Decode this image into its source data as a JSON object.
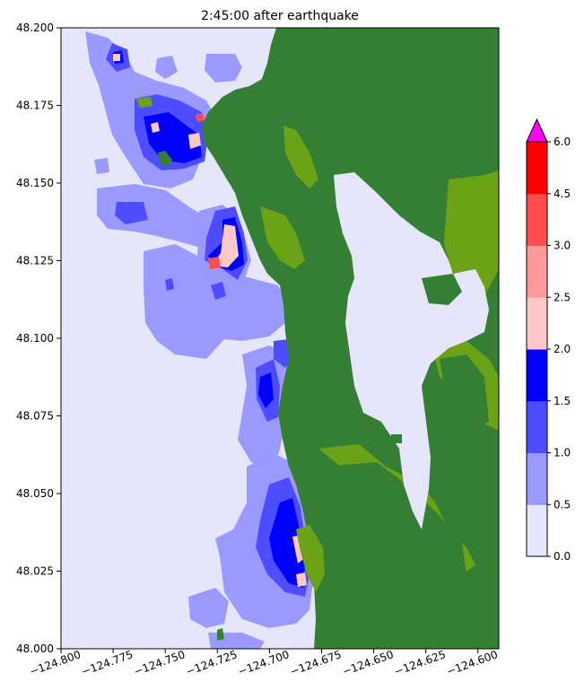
{
  "chart_data": {
    "type": "heatmap",
    "title": "2:45:00 after earthquake",
    "xlabel": "",
    "ylabel": "",
    "xlim": [
      -124.8,
      -124.59
    ],
    "ylim": [
      48.0,
      48.2
    ],
    "xticks": [
      {
        "value": -124.8,
        "label": "−124.800"
      },
      {
        "value": -124.775,
        "label": "−124.775"
      },
      {
        "value": -124.75,
        "label": "−124.750"
      },
      {
        "value": -124.725,
        "label": "−124.725"
      },
      {
        "value": -124.7,
        "label": "−124.700"
      },
      {
        "value": -124.675,
        "label": "−124.675"
      },
      {
        "value": -124.65,
        "label": "−124.650"
      },
      {
        "value": -124.625,
        "label": "−124.625"
      },
      {
        "value": -124.6,
        "label": "−124.600"
      }
    ],
    "yticks": [
      {
        "value": 48.0,
        "label": "48.000"
      },
      {
        "value": 48.025,
        "label": "48.025"
      },
      {
        "value": 48.05,
        "label": "48.050"
      },
      {
        "value": 48.075,
        "label": "48.075"
      },
      {
        "value": 48.1,
        "label": "48.100"
      },
      {
        "value": 48.125,
        "label": "48.125"
      },
      {
        "value": 48.15,
        "label": "48.150"
      },
      {
        "value": 48.175,
        "label": "48.175"
      },
      {
        "value": 48.2,
        "label": "48.200"
      }
    ],
    "grid": false,
    "colorbar": {
      "levels": [
        0.0,
        0.5,
        1.0,
        1.5,
        2.0,
        2.5,
        3.0,
        4.5,
        6.0
      ],
      "labels": [
        "0.0",
        "0.5",
        "1.0",
        "1.5",
        "2.0",
        "2.5",
        "3.0",
        "4.5",
        "6.0"
      ],
      "colors": [
        "#e6e6fa",
        "#9999ff",
        "#4d4dff",
        "#0000ff",
        "#ffc8c8",
        "#ff9999",
        "#ff4d4d",
        "#ff0000"
      ],
      "extend_color": "#ff00ff"
    },
    "land_colors": {
      "land": "#357f35",
      "lowland": "#6aa316"
    },
    "water_color": "#e6e6fa"
  }
}
